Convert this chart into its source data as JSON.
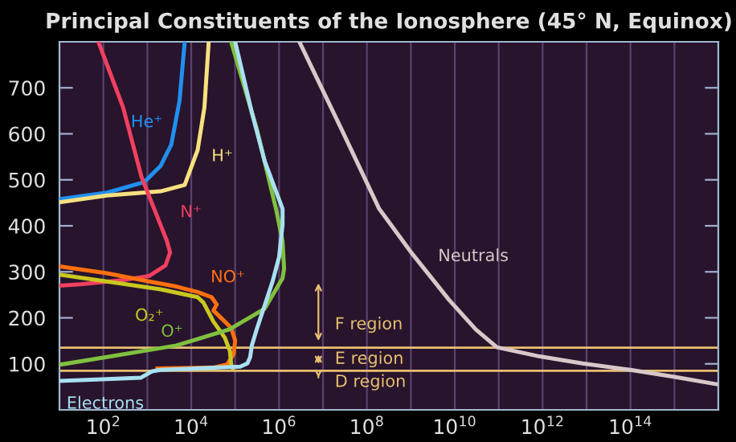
{
  "chart_data": {
    "type": "line",
    "title": "Principal Constituents of the Ionosphere (45° N, Equinox)",
    "log": "x",
    "grid": "x",
    "marker": "none",
    "line_style": "solid",
    "xlim": [
      10,
      1e+16
    ],
    "xticks": [
      {
        "value": 10,
        "label": null
      },
      {
        "value": 100,
        "label": "10$^{2}$"
      },
      {
        "value": 1000,
        "label": null
      },
      {
        "value": 10000,
        "label": "10$^{4}$"
      },
      {
        "value": 100000.0,
        "label": null
      },
      {
        "value": 1000000.0,
        "label": "10$^{6}$"
      },
      {
        "value": 10000000.0,
        "label": null
      },
      {
        "value": 100000000.0,
        "label": "10$^{8}$"
      },
      {
        "value": 1000000000.0,
        "label": null
      },
      {
        "value": 10000000000.0,
        "label": "10$^{10}$"
      },
      {
        "value": 100000000000.0,
        "label": null
      },
      {
        "value": 1000000000000.0,
        "label": "10$^{12}$"
      },
      {
        "value": 10000000000000.0,
        "label": null
      },
      {
        "value": 100000000000000.0,
        "label": "10$^{14}$"
      },
      {
        "value": 1000000000000000.0,
        "label": null
      },
      {
        "value": 1e+16,
        "label": null
      }
    ],
    "ylim": [
      0,
      800
    ],
    "yticks": [
      100,
      200,
      300,
      400,
      500,
      600,
      700
    ],
    "series": [
      {
        "color": "#2090f0",
        "x": [
          10,
          120,
          850,
          2000,
          3500,
          5400,
          7100
        ],
        "values": [
          458,
          472,
          495,
          530,
          576,
          671,
          800
        ]
      },
      {
        "color": "#f8e080",
        "x": [
          10,
          120,
          2000,
          7100,
          14000,
          20000,
          25000
        ],
        "values": [
          451,
          466,
          475,
          489,
          565,
          658,
          800
        ]
      },
      {
        "color": "#f04060",
        "x": [
          79,
          280,
          740,
          1700,
          2800,
          3300,
          2600,
          1100,
          280,
          30,
          10
        ],
        "values": [
          797,
          658,
          506,
          419,
          367,
          342,
          314,
          291,
          282,
          273,
          270
        ]
      },
      {
        "color": "#ff7010",
        "x": [
          10,
          120,
          1100,
          4600,
          14000,
          29000,
          38000,
          32000,
          50000,
          81000,
          100000,
          93000,
          66000,
          32000,
          1700
        ],
        "values": [
          312,
          297,
          279,
          268,
          256,
          245,
          229,
          216,
          198,
          178,
          151,
          122,
          99,
          92,
          90
        ]
      },
      {
        "color": "#c8c820",
        "x": [
          10,
          120,
          2000,
          14000,
          19000,
          32000,
          58000,
          76000,
          81000,
          87000
        ],
        "values": [
          294,
          279,
          262,
          245,
          233,
          192,
          157,
          128,
          99,
          91
        ]
      },
      {
        "color": "#80c040",
        "x": [
          10,
          120,
          4600,
          74000,
          470000,
          1200000,
          1300000,
          1200000,
          850000,
          310000,
          81000
        ],
        "values": [
          98,
          115,
          140,
          175,
          220,
          286,
          307,
          367,
          437,
          611,
          800
        ]
      },
      {
        "color": "#d8c8c8",
        "x": [
          2900000,
          26000000,
          190000000,
          1000000000.0,
          7400000000.0,
          30000000000.0,
          91000000000.0,
          870000000000.0,
          8100000000000.0,
          100000000000000.0,
          950000000000000.0,
          8900000000000000.0
        ],
        "values": [
          800,
          611,
          437,
          343,
          239,
          175,
          136,
          116,
          101,
          87,
          72,
          56
        ]
      },
      {
        "color": "#a8e0f0",
        "x": [
          10,
          69,
          720,
          1300,
          2000,
          130000,
          190000,
          220000,
          240000,
          310000,
          470000,
          710000,
          1000000,
          1200000,
          1200000,
          470000,
          240000,
          100000
        ],
        "values": [
          63,
          66,
          70,
          84,
          87,
          94,
          101,
          115,
          140,
          175,
          227,
          279,
          332,
          402,
          437,
          541,
          646,
          800
        ]
      }
    ],
    "ref_lines": [
      {
        "axis": "y",
        "value": 85,
        "color": "#e8c070"
      },
      {
        "axis": "y",
        "value": 135,
        "color": "#e8c070"
      }
    ],
    "annotations": [
      {
        "text": "He⁺",
        "x": 3500,
        "y": 576
      },
      {
        "text": "H⁺",
        "x": 14000,
        "y": 565
      },
      {
        "text": "N⁺",
        "x": 1700,
        "y": 419
      },
      {
        "text": "NO⁺",
        "x": 38000,
        "y": 229
      },
      {
        "text": "O₂⁺",
        "x": 2000,
        "y": 262
      },
      {
        "text": "O⁺",
        "x": 4600,
        "y": 140
      },
      {
        "text": "Neutrals",
        "x": 1000000000.0,
        "y": 343
      },
      {
        "text": "Electrons",
        "x": 69,
        "y": 66
      },
      "F region",
      "E region",
      "D region"
    ]
  }
}
